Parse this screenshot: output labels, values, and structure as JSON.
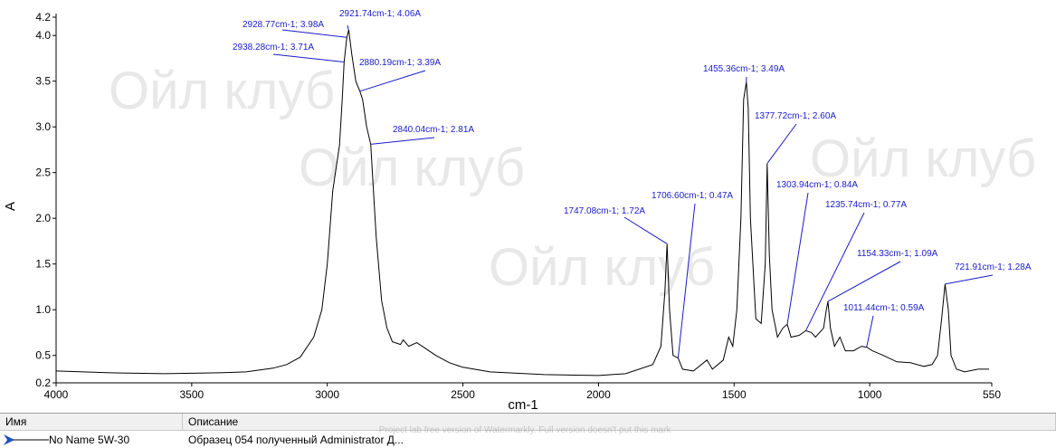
{
  "chart_data": {
    "type": "line",
    "color": "#000000",
    "xlabel": "cm-1",
    "ylabel": "A",
    "xlim": [
      4000,
      550
    ],
    "ylim": [
      0.2,
      4.2
    ],
    "xticks": [
      4000,
      3500,
      3000,
      2500,
      2000,
      1500,
      1000,
      550
    ],
    "yticks": [
      0.2,
      0.5,
      {
        "value": 1,
        "label": "1.0"
      },
      1.5,
      {
        "value": 2,
        "label": "2.0"
      },
      2.5,
      {
        "value": 3,
        "label": "3.0"
      },
      3.5,
      {
        "value": 4,
        "label": "4.0"
      },
      4.2
    ],
    "x": [
      4000,
      3800,
      3600,
      3400,
      3300,
      3200,
      3150,
      3100,
      3050,
      3020,
      3000,
      2980,
      2965,
      2955,
      2945,
      2938,
      2928,
      2921,
      2910,
      2895,
      2880,
      2870,
      2855,
      2840,
      2820,
      2800,
      2780,
      2760,
      2730,
      2720,
      2700,
      2670,
      2640,
      2600,
      2550,
      2500,
      2400,
      2200,
      2000,
      1900,
      1800,
      1770,
      1755,
      1747,
      1738,
      1725,
      1706,
      1690,
      1650,
      1600,
      1580,
      1540,
      1520,
      1505,
      1490,
      1475,
      1465,
      1455,
      1448,
      1440,
      1420,
      1400,
      1385,
      1378,
      1370,
      1360,
      1340,
      1320,
      1304,
      1290,
      1260,
      1236,
      1215,
      1200,
      1170,
      1160,
      1154,
      1145,
      1130,
      1110,
      1090,
      1060,
      1030,
      1011,
      990,
      950,
      900,
      850,
      800,
      770,
      750,
      735,
      722,
      710,
      700,
      680,
      650,
      600,
      560
    ],
    "values": [
      0.33,
      0.31,
      0.3,
      0.31,
      0.32,
      0.36,
      0.4,
      0.48,
      0.7,
      1.0,
      1.5,
      2.3,
      2.6,
      2.8,
      3.3,
      3.71,
      3.98,
      4.06,
      3.8,
      3.5,
      3.39,
      3.3,
      3.0,
      2.81,
      1.8,
      1.1,
      0.8,
      0.65,
      0.62,
      0.67,
      0.6,
      0.64,
      0.58,
      0.5,
      0.42,
      0.37,
      0.32,
      0.29,
      0.28,
      0.3,
      0.4,
      0.6,
      1.2,
      1.72,
      1.0,
      0.5,
      0.47,
      0.35,
      0.33,
      0.45,
      0.35,
      0.45,
      0.7,
      0.6,
      1.0,
      2.0,
      3.3,
      3.49,
      3.2,
      2.0,
      0.9,
      0.85,
      1.5,
      2.6,
      1.6,
      1.0,
      0.7,
      0.8,
      0.84,
      0.7,
      0.72,
      0.77,
      0.75,
      0.7,
      0.8,
      1.0,
      1.09,
      0.8,
      0.6,
      0.7,
      0.55,
      0.55,
      0.6,
      0.59,
      0.55,
      0.5,
      0.43,
      0.42,
      0.38,
      0.4,
      0.5,
      0.9,
      1.28,
      1.0,
      0.5,
      0.35,
      0.32,
      0.35,
      0.35
    ],
    "annotations": [
      {
        "text": "2921.74cm-1; 4.06A",
        "x": 2921.74,
        "y": 4.06
      },
      {
        "text": "2928.77cm-1; 3.98A",
        "x": 2928.77,
        "y": 3.98
      },
      {
        "text": "2938.28cm-1; 3.71A",
        "x": 2938.28,
        "y": 3.71
      },
      {
        "text": "2880.19cm-1; 3.39A",
        "x": 2880.19,
        "y": 3.39
      },
      {
        "text": "2840.04cm-1; 2.81A",
        "x": 2840.04,
        "y": 2.81
      },
      {
        "text": "1747.08cm-1; 1.72A",
        "x": 1747.08,
        "y": 1.72
      },
      {
        "text": "1706.60cm-1; 0.47A",
        "x": 1706.6,
        "y": 0.47
      },
      {
        "text": "1455.36cm-1; 3.49A",
        "x": 1455.36,
        "y": 3.49
      },
      {
        "text": "1377.72cm-1; 2.60A",
        "x": 1377.72,
        "y": 2.6
      },
      {
        "text": "1303.94cm-1; 0.84A",
        "x": 1303.94,
        "y": 0.84
      },
      {
        "text": "1235.74cm-1; 0.77A",
        "x": 1235.74,
        "y": 0.77
      },
      {
        "text": "1154.33cm-1; 1.09A",
        "x": 1154.33,
        "y": 1.09
      },
      {
        "text": "1011.44cm-1; 0.59A",
        "x": 1011.44,
        "y": 0.59
      },
      {
        "text": "721.91cm-1; 1.28A",
        "x": 721.91,
        "y": 1.28
      }
    ],
    "watermarks": [
      "Ойл клуб",
      "Ойл клуб",
      "Ойл клуб",
      "Ойл клуб"
    ],
    "footer_mark": "Project lab free version of Watermarkly. Full version doesn't put this mark"
  },
  "table": {
    "headers": [
      "Имя",
      "Описание"
    ],
    "rows": [
      [
        "No Name 5W-30",
        "Образец 054 полученный Administrator Д..."
      ]
    ]
  }
}
